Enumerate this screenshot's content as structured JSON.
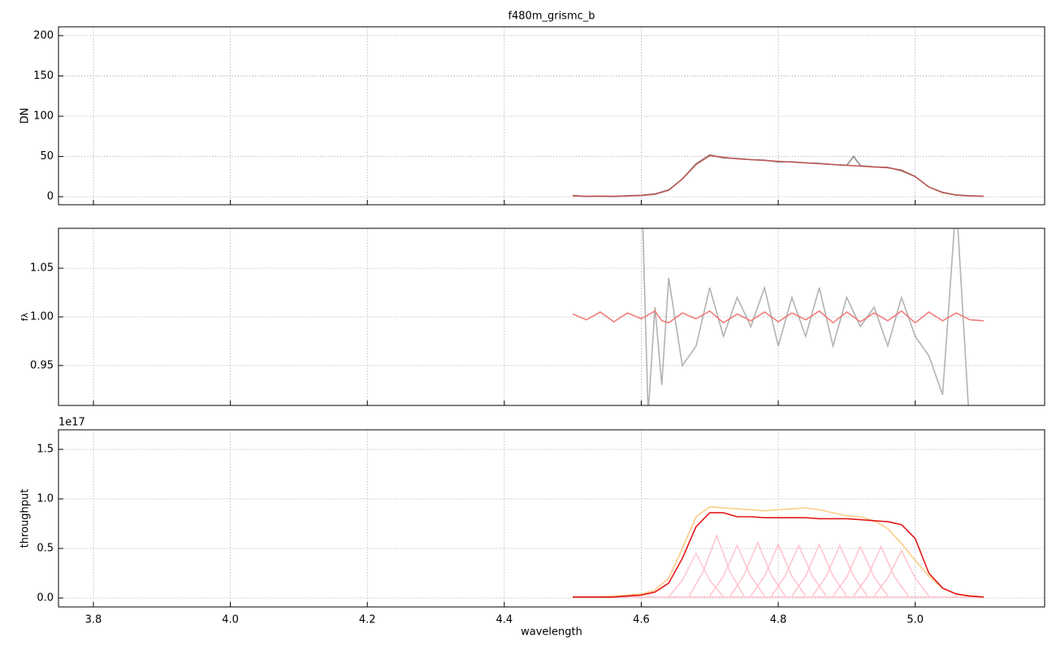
{
  "chart_data": [
    {
      "type": "line",
      "title": "f480m_grismc_b",
      "ylabel": "DN",
      "grid": true,
      "show_xtick_labels": false,
      "xlim": [
        3.749,
        5.189
      ],
      "ylim": [
        -10,
        211
      ],
      "xticks": [
        3.8,
        {
          "value": 4,
          "label": "4.0"
        },
        4.2,
        4.4,
        4.6,
        4.8,
        {
          "value": 5,
          "label": "5.0"
        }
      ],
      "yticks": [
        0,
        50,
        100,
        150,
        200
      ],
      "x": [
        4.5,
        4.52,
        4.54,
        4.56,
        4.58,
        4.6,
        4.62,
        4.64,
        4.66,
        4.68,
        4.7,
        4.72,
        4.74,
        4.76,
        4.78,
        4.8,
        4.82,
        4.84,
        4.86,
        4.88,
        4.9,
        4.91,
        4.92,
        4.94,
        4.96,
        4.98,
        5.0,
        5.02,
        5.04,
        5.06,
        5.08,
        5.1
      ],
      "series": [
        {
          "color": "#808080",
          "values": [
            1.5,
            0.3,
            0.8,
            0.2,
            1.2,
            1.8,
            3.5,
            8.5,
            22,
            41,
            52,
            48,
            47.5,
            46,
            45.5,
            43,
            43.5,
            42,
            41.5,
            40,
            39,
            50,
            38.5,
            37,
            36.5,
            32,
            25,
            12,
            5.5,
            2,
            1.2,
            0.5
          ]
        },
        {
          "color": "#c0504d",
          "values": [
            1,
            0.5,
            0.5,
            0.5,
            1,
            1.5,
            3,
            8,
            22,
            40,
            51,
            49,
            47,
            46,
            45,
            44,
            43,
            42,
            41,
            40,
            39,
            38.5,
            38,
            37,
            36,
            33,
            25,
            12,
            5,
            2,
            1,
            0.5
          ]
        }
      ]
    },
    {
      "type": "line",
      "ylabel": "fλ",
      "grid": true,
      "show_xtick_labels": false,
      "xlim": [
        3.749,
        5.189
      ],
      "ylim": [
        0.909,
        1.091
      ],
      "xticks": [
        3.8,
        {
          "value": 4,
          "label": "4.0"
        },
        4.2,
        4.4,
        4.6,
        4.8,
        {
          "value": 5,
          "label": "5.0"
        }
      ],
      "yticks": [
        0.95,
        {
          "value": 1,
          "label": "1.00"
        },
        1.05
      ],
      "x": [
        4.5,
        4.52,
        4.54,
        4.56,
        4.58,
        4.6,
        4.61,
        4.62,
        4.63,
        4.64,
        4.66,
        4.68,
        4.7,
        4.72,
        4.74,
        4.76,
        4.78,
        4.8,
        4.82,
        4.84,
        4.86,
        4.88,
        4.9,
        4.92,
        4.94,
        4.96,
        4.98,
        5.0,
        5.02,
        5.04,
        5.06,
        5.08,
        5.1
      ],
      "series": [
        {
          "color": "#aaaaaa",
          "values": [
            null,
            null,
            null,
            null,
            null,
            1.15,
            0.9,
            1.01,
            0.93,
            1.04,
            0.95,
            0.97,
            1.03,
            0.98,
            1.02,
            0.99,
            1.03,
            0.97,
            1.02,
            0.98,
            1.03,
            0.97,
            1.02,
            0.99,
            1.01,
            0.97,
            1.02,
            0.98,
            0.96,
            0.92,
            1.12,
            0.88,
            null
          ]
        },
        {
          "color": "#f07070",
          "values": [
            1.003,
            0.997,
            1.005,
            0.995,
            1.004,
            0.998,
            1.002,
            1.006,
            0.996,
            0.994,
            1.004,
            0.998,
            1.006,
            0.994,
            1.003,
            0.996,
            1.005,
            0.995,
            1.004,
            0.997,
            1.006,
            0.994,
            1.005,
            0.995,
            1.004,
            0.996,
            1.006,
            0.994,
            1.005,
            0.996,
            1.004,
            0.997,
            0.996
          ]
        }
      ]
    },
    {
      "type": "line",
      "ylabel": "throughput",
      "xlabel": "wavelength",
      "offset_label": "1e17",
      "grid": true,
      "show_xtick_labels": true,
      "xlim": [
        3.749,
        5.189
      ],
      "ylim": [
        -0.09,
        1.697
      ],
      "xticks": [
        3.8,
        {
          "value": 4,
          "label": "4.0"
        },
        4.2,
        4.4,
        4.6,
        4.8,
        {
          "value": 5,
          "label": "5.0"
        }
      ],
      "yticks": [
        {
          "value": 0,
          "label": "0.0"
        },
        0.5,
        {
          "value": 1,
          "label": "1.0"
        },
        1.5
      ],
      "x": [
        4.5,
        4.52,
        4.54,
        4.56,
        4.58,
        4.6,
        4.62,
        4.64,
        4.66,
        4.68,
        4.7,
        4.72,
        4.74,
        4.76,
        4.78,
        4.8,
        4.82,
        4.84,
        4.86,
        4.88,
        4.9,
        4.92,
        4.94,
        4.96,
        4.98,
        5.0,
        5.02,
        5.04,
        5.06,
        5.08,
        5.1
      ],
      "series": [
        {
          "color": "#ffc0cb",
          "x": [
            4.5,
            4.6,
            4.7,
            4.8,
            4.9,
            5.0,
            5.1
          ],
          "values": [
            0.01,
            0.01,
            0.01,
            0.01,
            0.01,
            0.01,
            0.01
          ]
        },
        {
          "color": "#ffc0cb",
          "x": [
            4.64,
            4.66,
            4.68,
            4.7,
            4.72
          ],
          "values": [
            0.01,
            0.18,
            0.45,
            0.18,
            0.01
          ]
        },
        {
          "color": "#ffc0cb",
          "x": [
            4.67,
            4.69,
            4.71,
            4.73,
            4.75
          ],
          "values": [
            0.02,
            0.26,
            0.63,
            0.26,
            0.02
          ]
        },
        {
          "color": "#ffc0cb",
          "x": [
            4.7,
            4.72,
            4.74,
            4.76,
            4.78
          ],
          "values": [
            0.02,
            0.22,
            0.53,
            0.22,
            0.02
          ]
        },
        {
          "color": "#ffc0cb",
          "x": [
            4.73,
            4.75,
            4.77,
            4.79,
            4.81
          ],
          "values": [
            0.02,
            0.23,
            0.56,
            0.23,
            0.02
          ]
        },
        {
          "color": "#ffc0cb",
          "x": [
            4.76,
            4.78,
            4.8,
            4.82,
            4.84
          ],
          "values": [
            0.02,
            0.22,
            0.54,
            0.22,
            0.02
          ]
        },
        {
          "color": "#ffc0cb",
          "x": [
            4.79,
            4.81,
            4.83,
            4.85,
            4.87
          ],
          "values": [
            0.02,
            0.22,
            0.53,
            0.22,
            0.02
          ]
        },
        {
          "color": "#ffc0cb",
          "x": [
            4.82,
            4.84,
            4.86,
            4.88,
            4.9
          ],
          "values": [
            0.02,
            0.22,
            0.54,
            0.22,
            0.02
          ]
        },
        {
          "color": "#ffc0cb",
          "x": [
            4.85,
            4.87,
            4.89,
            4.91,
            4.93
          ],
          "values": [
            0.02,
            0.22,
            0.53,
            0.22,
            0.02
          ]
        },
        {
          "color": "#ffc0cb",
          "x": [
            4.88,
            4.9,
            4.92,
            4.94,
            4.96
          ],
          "values": [
            0.02,
            0.21,
            0.52,
            0.21,
            0.02
          ]
        },
        {
          "color": "#ffc0cb",
          "x": [
            4.91,
            4.93,
            4.95,
            4.97,
            4.99
          ],
          "values": [
            0.02,
            0.21,
            0.52,
            0.21,
            0.02
          ]
        },
        {
          "color": "#ffc0cb",
          "x": [
            4.94,
            4.96,
            4.98,
            5.0,
            5.02
          ],
          "values": [
            0.02,
            0.2,
            0.48,
            0.2,
            0.02
          ]
        },
        {
          "color": "#f9c97a",
          "values": [
            0.01,
            0.01,
            0.01,
            0.02,
            0.03,
            0.04,
            0.08,
            0.2,
            0.5,
            0.82,
            0.92,
            0.91,
            0.9,
            0.89,
            0.88,
            0.89,
            0.9,
            0.91,
            0.89,
            0.86,
            0.83,
            0.82,
            0.78,
            0.7,
            0.55,
            0.38,
            0.22,
            0.1,
            0.04,
            0.02,
            0.01
          ]
        },
        {
          "color": "#e00000",
          "values": [
            0.01,
            0.01,
            0.01,
            0.01,
            0.02,
            0.03,
            0.06,
            0.15,
            0.4,
            0.72,
            0.86,
            0.86,
            0.82,
            0.82,
            0.81,
            0.81,
            0.81,
            0.81,
            0.8,
            0.8,
            0.8,
            0.79,
            0.78,
            0.77,
            0.74,
            0.6,
            0.25,
            0.1,
            0.04,
            0.02,
            0.01
          ]
        }
      ]
    }
  ]
}
